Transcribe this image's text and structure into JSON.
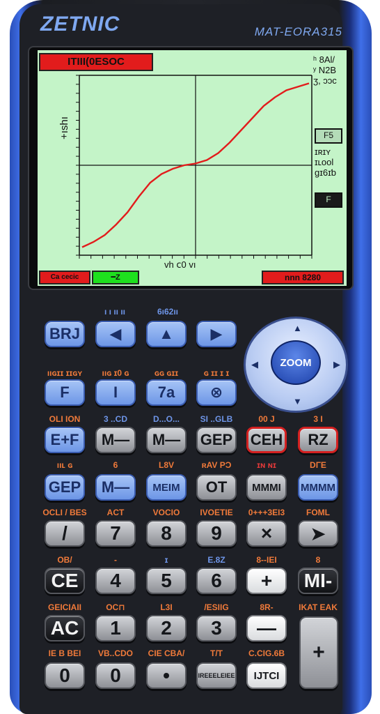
{
  "brand": "ZETNIC",
  "model": "MAT-EORA315",
  "screen": {
    "title": "ITIII(0ESOC",
    "ylabel": "+ıshı",
    "xlabel": "vh ⅽ0 vı",
    "side_top": [
      "ʰ 8Al/",
      "ʸ N2B",
      "ʒ, ɔɔc"
    ],
    "side_box1": "F5",
    "side_mid": [
      "ɪʀɪʏ",
      "ɪʟool",
      "ɡɪ6ɪƅ"
    ],
    "side_box2": "F",
    "status_left": "Ca cecic",
    "status_green": "━Z",
    "status_right": "nnn 8280",
    "colors": {
      "screen_bg": "#c4f4c8",
      "curve": "#e21c1c",
      "axis": "#111111"
    },
    "curve_points": [
      [
        0,
        0.03
      ],
      [
        0.05,
        0.06
      ],
      [
        0.1,
        0.1
      ],
      [
        0.15,
        0.16
      ],
      [
        0.2,
        0.23
      ],
      [
        0.25,
        0.32
      ],
      [
        0.3,
        0.4
      ],
      [
        0.35,
        0.45
      ],
      [
        0.4,
        0.48
      ],
      [
        0.45,
        0.5
      ],
      [
        0.5,
        0.51
      ],
      [
        0.55,
        0.53
      ],
      [
        0.6,
        0.57
      ],
      [
        0.65,
        0.63
      ],
      [
        0.7,
        0.7
      ],
      [
        0.75,
        0.77
      ],
      [
        0.8,
        0.84
      ],
      [
        0.85,
        0.89
      ],
      [
        0.9,
        0.93
      ],
      [
        0.95,
        0.95
      ],
      [
        1,
        0.97
      ]
    ]
  },
  "dpad": {
    "center_label": "ZOOM",
    "up": "▲",
    "down": "▼",
    "left": "◀",
    "right": "▶"
  },
  "rows": [
    {
      "labels": [
        {
          "text": "ı ı ıı ıı",
          "color": "blue"
        },
        {
          "text": "6ı62ıı",
          "color": "blue"
        }
      ],
      "keys": [
        {
          "text": "BRJ",
          "style": "blue"
        },
        {
          "text": "◀",
          "style": "blue"
        },
        {
          "text": "▲",
          "style": "blue"
        },
        {
          "text": "▶",
          "style": "blue"
        }
      ]
    },
    {
      "labels": [
        {
          "text": "ııɢɪɪ ɪɪɢʏ",
          "color": "orange"
        },
        {
          "text": "ııɢ ɪ0 ɢ",
          "color": "orange"
        },
        {
          "text": "ɢɢ ɢɪɪ",
          "color": "orange"
        },
        {
          "text": "ɢ ɪɪ ɪ ɪ",
          "color": "orange"
        }
      ],
      "keys": [
        {
          "text": "F",
          "style": "blue"
        },
        {
          "text": "I",
          "style": "blue"
        },
        {
          "text": "7a",
          "style": "blue"
        },
        {
          "text": "⊗",
          "style": "blue"
        }
      ]
    },
    {
      "labels": [
        {
          "text": "OLI ION",
          "color": "orange"
        },
        {
          "text": "3 ..CD",
          "color": "blue"
        },
        {
          "text": "D...O...",
          "color": "blue"
        },
        {
          "text": "SI ..GLB",
          "color": "blue"
        },
        {
          "text": "00 J",
          "color": "orange"
        },
        {
          "text": "3 I",
          "color": "orange"
        }
      ],
      "keys": [
        {
          "text": "E+F",
          "style": "blue"
        },
        {
          "text": "M—",
          "style": "gray"
        },
        {
          "text": "M—",
          "style": "gray"
        },
        {
          "text": "GEP",
          "style": "gray"
        },
        {
          "text": "CEH",
          "style": "redrim-gray"
        },
        {
          "text": "RZ",
          "style": "redrim-gray"
        }
      ]
    },
    {
      "labels": [
        {
          "text": "ııʟ ɢ",
          "color": "orange"
        },
        {
          "text": "6",
          "color": "orange"
        },
        {
          "text": "L8V",
          "color": "orange"
        },
        {
          "text": "ʀAV PƆ",
          "color": "orange"
        },
        {
          "text": "ɪɴ ɴɪ",
          "color": "red"
        },
        {
          "text": "DΓE",
          "color": "orange"
        }
      ],
      "keys": [
        {
          "text": "GEP",
          "style": "blue"
        },
        {
          "text": "M—",
          "style": "blue"
        },
        {
          "text": "MEIM",
          "style": "blue"
        },
        {
          "text": "OT",
          "style": "gray"
        },
        {
          "text": "MMMI",
          "style": "gray"
        },
        {
          "text": "MMMM",
          "style": "blue"
        }
      ]
    },
    {
      "labels": [
        {
          "text": "OCLI / BES",
          "color": "orange"
        },
        {
          "text": "ACT",
          "color": "orange"
        },
        {
          "text": "VOCIO",
          "color": "orange"
        },
        {
          "text": "IVOETIE",
          "color": "orange"
        },
        {
          "text": "0+++3EI3",
          "color": "orange"
        },
        {
          "text": "FOML",
          "color": "orange"
        }
      ],
      "keys": [
        {
          "text": "/",
          "style": "gray"
        },
        {
          "text": "7",
          "style": "gray"
        },
        {
          "text": "8",
          "style": "gray"
        },
        {
          "text": "9",
          "style": "gray"
        },
        {
          "text": "×",
          "style": "gray"
        },
        {
          "text": "➤",
          "style": "gray"
        }
      ]
    },
    {
      "labels": [
        {
          "text": "OB/",
          "color": "orange"
        },
        {
          "text": "-",
          "color": "orange"
        },
        {
          "text": "ɪ",
          "color": "blue"
        },
        {
          "text": "E.8Z",
          "color": "blue"
        },
        {
          "text": "8--IEI",
          "color": "orange"
        },
        {
          "text": "8",
          "color": "orange"
        }
      ],
      "keys": [
        {
          "text": "CE",
          "style": "black"
        },
        {
          "text": "4",
          "style": "gray"
        },
        {
          "text": "5",
          "style": "gray"
        },
        {
          "text": "6",
          "style": "gray"
        },
        {
          "text": "+",
          "style": "white"
        },
        {
          "text": "MI-",
          "style": "black"
        }
      ]
    },
    {
      "labels": [
        {
          "text": "GEICIAII",
          "color": "orange"
        },
        {
          "text": "OC⊓",
          "color": "orange"
        },
        {
          "text": "L3I",
          "color": "orange"
        },
        {
          "text": "/ESIIG",
          "color": "orange"
        },
        {
          "text": "8R-",
          "color": "orange"
        },
        {
          "text": "IKAT EAK",
          "color": "orange"
        }
      ],
      "keys": [
        {
          "text": "AC",
          "style": "black"
        },
        {
          "text": "1",
          "style": "gray"
        },
        {
          "text": "2",
          "style": "gray"
        },
        {
          "text": "3",
          "style": "gray"
        },
        {
          "text": "—",
          "style": "white"
        }
      ]
    },
    {
      "labels": [
        {
          "text": "IE B BEI",
          "color": "orange"
        },
        {
          "text": "VB..CDO",
          "color": "orange"
        },
        {
          "text": "CIE CBA/",
          "color": "orange"
        },
        {
          "text": "T/T",
          "color": "orange"
        },
        {
          "text": "C.CIG.6B",
          "color": "orange"
        }
      ],
      "keys": [
        {
          "text": "0",
          "style": "gray"
        },
        {
          "text": "0",
          "style": "gray"
        },
        {
          "text": "•",
          "style": "gray"
        },
        {
          "text": "IREEELEIEE",
          "style": "gray"
        },
        {
          "text": "IJTCI",
          "style": "white"
        }
      ]
    }
  ],
  "plus_key": "+"
}
